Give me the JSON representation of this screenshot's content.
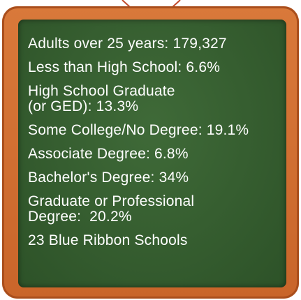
{
  "items": [
    [
      "Adults over 25 years: 179,327"
    ],
    [
      "Less than High School: 6.6%"
    ],
    [
      "High School Graduate",
      "(or GED): 13.3%"
    ],
    [
      "Some College/No Degree: 19.1%"
    ],
    [
      "Associate Degree: 6.8%"
    ],
    [
      "Bachelor's Degree: 34%"
    ],
    [
      "Graduate or Professional",
      "Degree:  20.2%"
    ],
    [
      "23 Blue Ribbon Schools"
    ]
  ]
}
